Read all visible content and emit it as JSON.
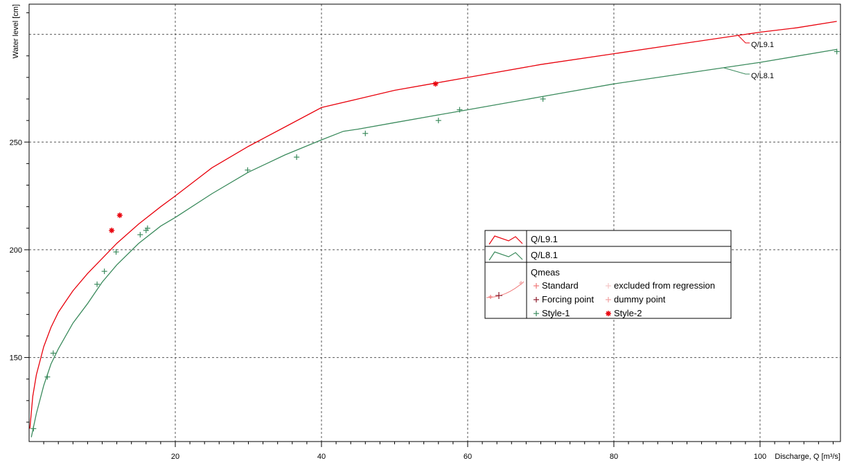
{
  "chart_data": {
    "type": "scatter",
    "title": "",
    "xlabel": "Discharge, Q [m³/s]",
    "ylabel": "Water level [cm]",
    "xlim": [
      0,
      111
    ],
    "ylim": [
      111,
      314
    ],
    "x_ticks": [
      20,
      40,
      60,
      80,
      100
    ],
    "x_tick_labels": [
      "20",
      "40",
      "60",
      "80",
      "100"
    ],
    "y_ticks": [
      150,
      200,
      250
    ],
    "y_tick_labels": [
      "150",
      "200",
      "250"
    ],
    "grid": true,
    "legend_position": "center-right",
    "colors": {
      "red": "#e8000b",
      "green": "#3a8a5c",
      "standard": "#f07878",
      "excluded": "#f4c4c4",
      "forcing": "#8b1a2a",
      "dummy": "#f0a0a0"
    },
    "series": [
      {
        "name": "Q/L9.1",
        "kind": "line",
        "color": "#e8000b",
        "x": [
          0.1,
          0.5,
          1,
          2,
          3,
          4,
          5,
          6,
          8,
          10,
          12,
          15,
          18,
          20,
          25,
          30,
          35,
          40,
          45,
          50,
          55,
          60,
          70,
          80,
          90,
          100,
          105,
          110.5
        ],
        "y": [
          117,
          132,
          142,
          155,
          164,
          171,
          176,
          181,
          189,
          196,
          203,
          212,
          220,
          225,
          238,
          248,
          257,
          266,
          270,
          274,
          277,
          280,
          286,
          291,
          296,
          301,
          303,
          306
        ]
      },
      {
        "name": "Q/L8.1",
        "kind": "line",
        "color": "#3a8a5c",
        "x": [
          0.3,
          1,
          2,
          3,
          4,
          6,
          8,
          10,
          12,
          15,
          18,
          20,
          25,
          30,
          35,
          40,
          43,
          45,
          50,
          55,
          60,
          70,
          80,
          90,
          100,
          110.5
        ],
        "y": [
          113,
          124,
          137,
          147,
          154,
          166,
          175,
          185,
          193,
          203,
          211,
          215,
          226,
          236,
          244,
          251,
          255,
          256,
          259,
          262,
          265,
          271,
          277,
          282,
          287,
          293
        ]
      },
      {
        "name": "Style-1",
        "kind": "scatter",
        "marker": "plus",
        "color": "#3a8a5c",
        "x": [
          0.6,
          2.5,
          3.3,
          9.3,
          10.3,
          11.9,
          15.2,
          16.0,
          16.2,
          29.9,
          36.6,
          46.0,
          56.0,
          58.9,
          70.3,
          110.5
        ],
        "y": [
          117,
          141,
          152,
          184,
          190,
          199,
          207,
          209,
          210,
          237,
          243,
          254,
          260,
          265,
          270,
          292
        ]
      },
      {
        "name": "Style-2",
        "kind": "scatter",
        "marker": "asterisk",
        "color": "#e8000b",
        "x": [
          11.3,
          12.4,
          55.6
        ],
        "y": [
          209,
          216,
          277
        ]
      }
    ],
    "curve_labels": [
      {
        "text": "Q/L9.1",
        "series": "Q/L9.1"
      },
      {
        "text": "Q/L8.1",
        "series": "Q/L8.1"
      }
    ],
    "legend": {
      "rows": [
        {
          "label": "Q/L9.1",
          "color": "#e8000b"
        },
        {
          "label": "Q/L8.1",
          "color": "#3a8a5c"
        }
      ],
      "qmeas_title": "Qmeas",
      "qmeas_entries": [
        {
          "label": "Standard",
          "color": "#f07878",
          "marker": "plus"
        },
        {
          "label": "excluded from regression",
          "color": "#f4c4c4",
          "marker": "plus"
        },
        {
          "label": "Forcing point",
          "color": "#8b1a2a",
          "marker": "plus"
        },
        {
          "label": "dummy point",
          "color": "#f0a0a0",
          "marker": "plus"
        },
        {
          "label": "Style-1",
          "color": "#3a8a5c",
          "marker": "plus"
        },
        {
          "label": "Style-2",
          "color": "#e8000b",
          "marker": "asterisk"
        }
      ]
    }
  }
}
